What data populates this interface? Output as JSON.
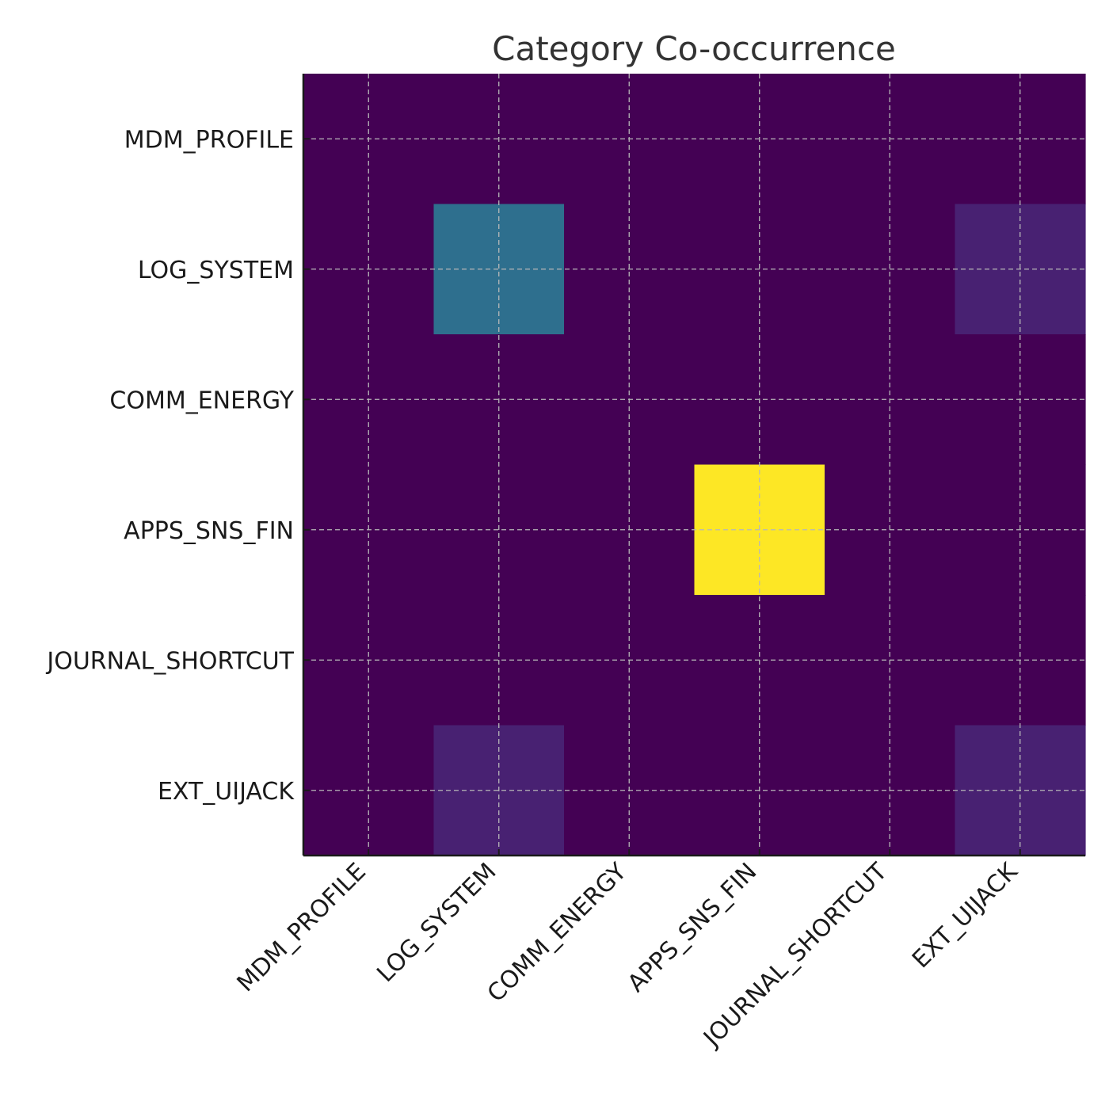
{
  "chart_data": {
    "type": "heatmap",
    "title": "Category Co-occurrence",
    "xlabel": "",
    "ylabel": "",
    "x_categories": [
      "MDM_PROFILE",
      "LOG_SYSTEM",
      "COMM_ENERGY",
      "APPS_SNS_FIN",
      "JOURNAL_SHORTCUT",
      "EXT_UIJACK"
    ],
    "y_categories": [
      "MDM_PROFILE",
      "LOG_SYSTEM",
      "COMM_ENERGY",
      "APPS_SNS_FIN",
      "JOURNAL_SHORTCUT",
      "EXT_UIJACK"
    ],
    "values": [
      [
        0,
        0,
        0,
        0,
        0,
        0
      ],
      [
        0,
        4,
        0,
        0,
        0,
        1
      ],
      [
        0,
        0,
        0,
        0,
        0,
        0
      ],
      [
        0,
        0,
        0,
        11,
        0,
        0
      ],
      [
        0,
        0,
        0,
        0,
        0,
        0
      ],
      [
        0,
        1,
        0,
        0,
        0,
        1
      ]
    ],
    "colormap": "viridis",
    "vmin": 0,
    "vmax": 11,
    "grid": true,
    "colorbar": false
  }
}
